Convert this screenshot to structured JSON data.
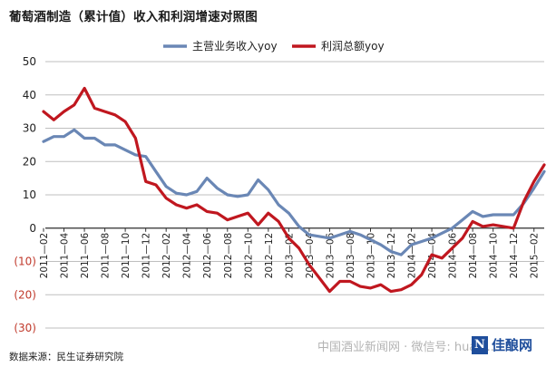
{
  "title": "葡萄酒制造（累计值）收入和利润增速对照图",
  "source": "数据来源：民生证券研究院",
  "watermark": "中国酒业新闻网 · 微信号: huaxi...",
  "brand": {
    "logo_letter": "N",
    "name": "佳酿网"
  },
  "colors": {
    "revenue": "#6a87b5",
    "profit": "#c0171f",
    "grid": "#bfbfbf",
    "axis": "#333333"
  },
  "chart_data": {
    "type": "line",
    "title": "葡萄酒制造（累计值）收入和利润增速对照图",
    "xlabel": "",
    "ylabel": "",
    "ylim": [
      -30,
      50
    ],
    "yticks": [
      50,
      40,
      30,
      20,
      10,
      0,
      -10,
      -20,
      -30
    ],
    "ytick_labels": [
      "50",
      "40",
      "30",
      "20",
      "10",
      "0",
      "(10)",
      "(20)",
      "(30)"
    ],
    "grid": "horizontal",
    "legend_position": "top",
    "x": [
      "2011-02",
      "2011-03",
      "2011-04",
      "2011-05",
      "2011-06",
      "2011-07",
      "2011-08",
      "2011-09",
      "2011-10",
      "2011-11",
      "2011-12",
      "2012-01",
      "2012-02",
      "2012-03",
      "2012-04",
      "2012-05",
      "2012-06",
      "2012-07",
      "2012-08",
      "2012-09",
      "2012-10",
      "2012-11",
      "2012-12",
      "2013-01",
      "2013-02",
      "2013-03",
      "2013-04",
      "2013-05",
      "2013-06",
      "2013-07",
      "2013-08",
      "2013-09",
      "2013-10",
      "2013-11",
      "2013-12",
      "2014-01",
      "2014-02",
      "2014-03",
      "2014-04",
      "2014-05",
      "2014-06",
      "2014-07",
      "2014-08",
      "2014-09",
      "2014-10",
      "2014-11",
      "2014-12",
      "2015-01",
      "2015-02",
      "2015-03"
    ],
    "x_tick_labels": [
      "2011—02",
      "2011—04",
      "2011—06",
      "2011—08",
      "2011—10",
      "2011—12",
      "2012—02",
      "2012—04",
      "2012—06",
      "2012—08",
      "2012—10",
      "2012—12",
      "2013—02",
      "2013—04",
      "2013—06",
      "2013—08",
      "2013—10",
      "2013—12",
      "2014—02",
      "2014—04",
      "2014—06",
      "2014—08",
      "2014—10",
      "2014—12",
      "2015—02"
    ],
    "series": [
      {
        "name": "主营业务收入yoy",
        "values": [
          26,
          27.5,
          27.5,
          29.5,
          27,
          27,
          25,
          25,
          23.5,
          22,
          21.5,
          17,
          12.5,
          10.5,
          10,
          11,
          15,
          12,
          10,
          9.5,
          10,
          14.5,
          11.5,
          7,
          4.5,
          0.5,
          -2,
          -2.5,
          -3,
          -2,
          -1,
          -2,
          -3.5,
          -5,
          -7,
          -8,
          -5,
          -4,
          -3,
          -1.5,
          0,
          2.5,
          5,
          3.5,
          4,
          4,
          4,
          7.5,
          12,
          17
        ]
      },
      {
        "name": "利润总额yoy",
        "values": [
          35,
          32.5,
          35,
          37,
          42,
          36,
          35,
          34,
          32,
          27,
          14,
          13,
          9,
          7,
          6,
          7,
          5,
          4.5,
          2.5,
          3.5,
          4.5,
          1,
          4.5,
          2,
          -3,
          -6,
          -11,
          -15,
          -19,
          -16,
          -16,
          -17.5,
          -18,
          -17,
          -19,
          -18.5,
          -17,
          -14,
          -8,
          -9,
          -6,
          -3,
          2,
          0.5,
          1,
          0.5,
          0,
          8,
          14,
          19
        ]
      }
    ]
  }
}
